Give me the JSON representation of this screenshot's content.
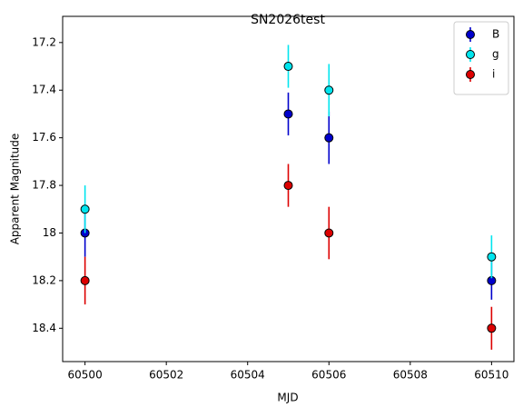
{
  "chart_data": {
    "type": "errorbar",
    "title": "SN2026test",
    "xlabel": "MJD",
    "ylabel": "Apparent Magnitude",
    "xlim": [
      60499.45,
      60510.55
    ],
    "xticks": [
      60500,
      60502,
      60504,
      60506,
      60508,
      60510
    ],
    "ylim": [
      18.54,
      17.09
    ],
    "yticks": [
      17.2,
      17.4,
      17.6,
      17.8,
      18.0,
      18.2,
      18.4
    ],
    "legend": "upper right",
    "series": [
      {
        "name": "B",
        "color": "#0000cc",
        "x": [
          60500,
          60505,
          60506,
          60510
        ],
        "values": [
          18.0,
          17.5,
          17.6,
          18.2
        ],
        "errors": [
          0.1,
          0.09,
          0.11,
          0.08
        ]
      },
      {
        "name": "g",
        "color": "#00e5ee",
        "x": [
          60500,
          60505,
          60506,
          60510
        ],
        "values": [
          17.9,
          17.3,
          17.4,
          18.1
        ],
        "errors": [
          0.1,
          0.09,
          0.11,
          0.09
        ]
      },
      {
        "name": "i",
        "color": "#dd0000",
        "x": [
          60500,
          60505,
          60506,
          60510
        ],
        "values": [
          18.2,
          17.8,
          18.0,
          18.4
        ],
        "errors": [
          0.1,
          0.09,
          0.11,
          0.09
        ]
      }
    ]
  }
}
